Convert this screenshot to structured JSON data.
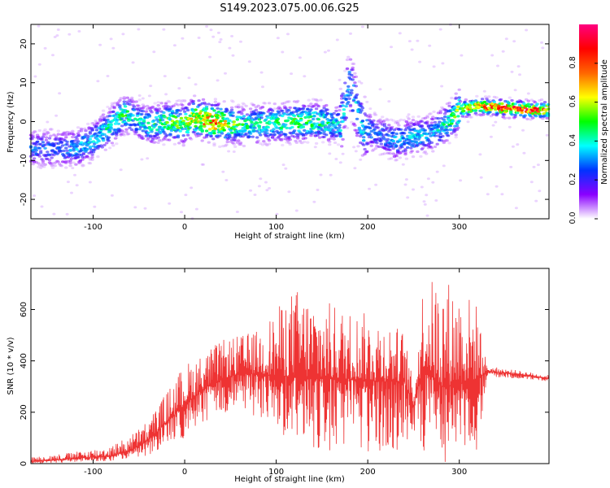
{
  "title": "S149.2023.075.00.06.G25",
  "chart_data": [
    {
      "type": "heatmap",
      "xlabel": "Height of straight line (km)",
      "ylabel": "Frequency (Hz)",
      "xlim": [
        -168,
        398
      ],
      "ylim": [
        -25,
        25
      ],
      "xticks": [
        -100,
        0,
        100,
        200,
        300
      ],
      "yticks": [
        -20,
        -10,
        0,
        10,
        20
      ],
      "colorbar": {
        "label": "Normalized spectral amplitude",
        "range": [
          0.0,
          1.0
        ],
        "ticks": [
          0.0,
          0.2,
          0.4,
          0.6,
          0.8
        ],
        "colormap": "rainbow",
        "colors": [
          "#ffffff",
          "#8a00ff",
          "#0033ff",
          "#00ffff",
          "#00ff00",
          "#ffff00",
          "#ff6600",
          "#ff0000",
          "#ff0080"
        ]
      },
      "ridge": {
        "x": [
          -140,
          -120,
          -100,
          -80,
          -65,
          -55,
          -40,
          -20,
          0,
          10,
          30,
          60,
          90,
          120,
          150,
          170,
          180,
          195,
          210,
          230,
          250,
          270,
          290,
          300,
          320,
          350,
          380,
          398
        ],
        "y": [
          -7,
          -7,
          -5,
          -1,
          2,
          1,
          -1,
          0,
          -0.5,
          1,
          0,
          -1,
          -0.5,
          0,
          0,
          -1,
          10,
          -2,
          -3,
          -5,
          -4,
          -3,
          0,
          3,
          4,
          3.5,
          3,
          3
        ],
        "peak_amplitude": [
          0.3,
          0.35,
          0.4,
          0.45,
          0.5,
          0.4,
          0.45,
          0.55,
          0.6,
          0.7,
          0.85,
          0.5,
          0.45,
          0.55,
          0.5,
          0.4,
          0.35,
          0.4,
          0.3,
          0.35,
          0.4,
          0.35,
          0.5,
          0.7,
          0.8,
          0.95,
          0.9,
          0.85
        ]
      }
    },
    {
      "type": "line",
      "xlabel": "Height of straight line (km)",
      "ylabel": "SNR (10 * v/v)",
      "xlim": [
        -168,
        398
      ],
      "ylim": [
        0,
        760
      ],
      "xticks": [
        -100,
        0,
        100,
        200,
        300
      ],
      "yticks": [
        0,
        200,
        400,
        600
      ],
      "color": "#ee3333",
      "envelope": {
        "x": [
          -168,
          -120,
          -80,
          -60,
          -40,
          -20,
          0,
          20,
          40,
          60,
          80,
          100,
          120,
          150,
          180,
          210,
          240,
          250,
          260,
          280,
          300,
          320,
          330,
          340,
          370,
          398
        ],
        "median": [
          8,
          20,
          30,
          50,
          90,
          160,
          230,
          290,
          330,
          350,
          350,
          340,
          340,
          330,
          330,
          320,
          320,
          220,
          380,
          300,
          310,
          330,
          360,
          355,
          345,
          330
        ],
        "high": [
          25,
          45,
          70,
          110,
          170,
          280,
          390,
          430,
          480,
          500,
          520,
          600,
          690,
          640,
          600,
          580,
          520,
          300,
          700,
          740,
          700,
          620,
          380,
          375,
          360,
          345
        ],
        "low": [
          0,
          5,
          10,
          20,
          30,
          60,
          100,
          150,
          180,
          200,
          180,
          120,
          80,
          50,
          30,
          20,
          40,
          100,
          40,
          0,
          20,
          50,
          330,
          335,
          330,
          320
        ]
      }
    }
  ]
}
